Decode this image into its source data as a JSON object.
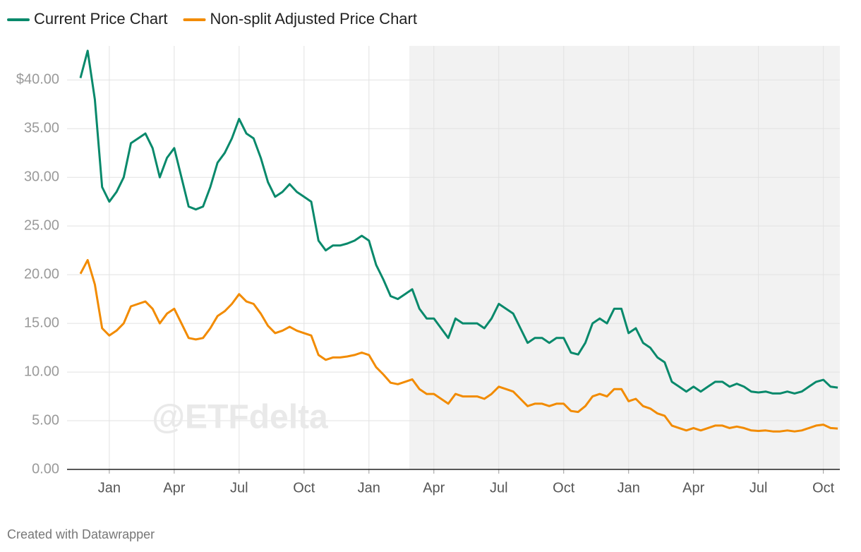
{
  "chart_data": {
    "type": "line",
    "watermark": "@ETFdelta",
    "credit": "Created with Datawrapper",
    "legend": "top-left",
    "grid": true,
    "ylim": [
      0,
      43.5
    ],
    "yticks": [
      {
        "value": 0,
        "label": "0.00"
      },
      {
        "value": 5,
        "label": "5.00"
      },
      {
        "value": 10,
        "label": "10.00"
      },
      {
        "value": 15,
        "label": "15.00"
      },
      {
        "value": 20,
        "label": "20.00"
      },
      {
        "value": 25,
        "label": "25.00"
      },
      {
        "value": 30,
        "label": "30.00"
      },
      {
        "value": 35,
        "label": "35.00"
      },
      {
        "value": 40,
        "label": "$40.00"
      }
    ],
    "categories": [
      null,
      null,
      null,
      null,
      "Jan",
      null,
      null,
      null,
      null,
      null,
      null,
      null,
      null,
      "Apr",
      null,
      null,
      null,
      null,
      null,
      null,
      null,
      null,
      "Jul",
      null,
      null,
      null,
      null,
      null,
      null,
      null,
      null,
      "Oct",
      null,
      null,
      null,
      null,
      null,
      null,
      null,
      null,
      "Jan",
      null,
      null,
      null,
      null,
      null,
      null,
      null,
      null,
      "Apr",
      null,
      null,
      null,
      null,
      null,
      null,
      null,
      null,
      "Jul",
      null,
      null,
      null,
      null,
      null,
      null,
      null,
      null,
      "Oct",
      null,
      null,
      null,
      null,
      null,
      null,
      null,
      null,
      "Jan",
      null,
      null,
      null,
      null,
      null,
      null,
      null,
      null,
      "Apr",
      null,
      null,
      null,
      null,
      null,
      null,
      null,
      null,
      "Jul",
      null,
      null,
      null,
      null,
      null,
      null,
      null,
      null,
      "Oct",
      null,
      null
    ],
    "series": [
      {
        "name": "Current Price Chart",
        "color": "#08896b",
        "values": [
          40.2,
          43,
          38,
          29,
          27.5,
          28.5,
          30,
          33.5,
          34,
          34.5,
          33,
          30,
          32,
          33,
          30,
          27,
          26.7,
          27,
          29,
          31.5,
          32.5,
          34,
          36,
          34.5,
          34,
          32,
          29.5,
          28,
          28.5,
          29.3,
          28.5,
          28,
          27.5,
          23.5,
          22.5,
          23,
          23,
          23.2,
          23.5,
          24,
          23.5,
          21,
          19.5,
          17.8,
          17.5,
          18,
          18.5,
          16.5,
          15.5,
          15.5,
          14.5,
          13.5,
          15.5,
          15,
          15,
          15,
          14.5,
          15.5,
          17,
          16.5,
          16,
          14.5,
          13,
          13.5,
          13.5,
          13,
          13.5,
          13.5,
          12,
          11.8,
          13,
          15,
          15.5,
          15,
          16.5,
          16.5,
          14,
          14.5,
          13,
          12.5,
          11.5,
          11,
          9,
          8.5,
          8,
          8.5,
          8,
          8.5,
          9,
          9,
          8.5,
          8.8,
          8.5,
          8,
          7.9,
          8,
          7.8,
          7.8,
          8,
          7.8,
          8,
          8.5,
          9,
          9.2,
          8.5,
          8.4
        ]
      },
      {
        "name": "Non-split Adjusted Price Chart",
        "color": "#f28b00",
        "values": [
          20.1,
          21.5,
          19,
          14.5,
          13.75,
          14.25,
          15,
          16.75,
          17,
          17.25,
          16.5,
          15,
          16,
          16.5,
          15,
          13.5,
          13.35,
          13.5,
          14.5,
          15.75,
          16.25,
          17,
          18,
          17.25,
          17,
          16,
          14.75,
          14,
          14.25,
          14.65,
          14.25,
          14,
          13.75,
          11.75,
          11.25,
          11.5,
          11.5,
          11.6,
          11.75,
          12,
          11.75,
          10.5,
          9.75,
          8.9,
          8.75,
          9,
          9.25,
          8.25,
          7.75,
          7.75,
          7.25,
          6.75,
          7.75,
          7.5,
          7.5,
          7.5,
          7.25,
          7.75,
          8.5,
          8.25,
          8,
          7.25,
          6.5,
          6.75,
          6.75,
          6.5,
          6.75,
          6.75,
          6,
          5.9,
          6.5,
          7.5,
          7.75,
          7.5,
          8.25,
          8.25,
          7,
          7.25,
          6.5,
          6.25,
          5.75,
          5.5,
          4.5,
          4.25,
          4,
          4.25,
          4,
          4.25,
          4.5,
          4.5,
          4.25,
          4.4,
          4.25,
          4,
          3.95,
          4,
          3.9,
          3.9,
          4,
          3.9,
          4,
          4.25,
          4.5,
          4.6,
          4.25,
          4.2
        ]
      }
    ]
  }
}
